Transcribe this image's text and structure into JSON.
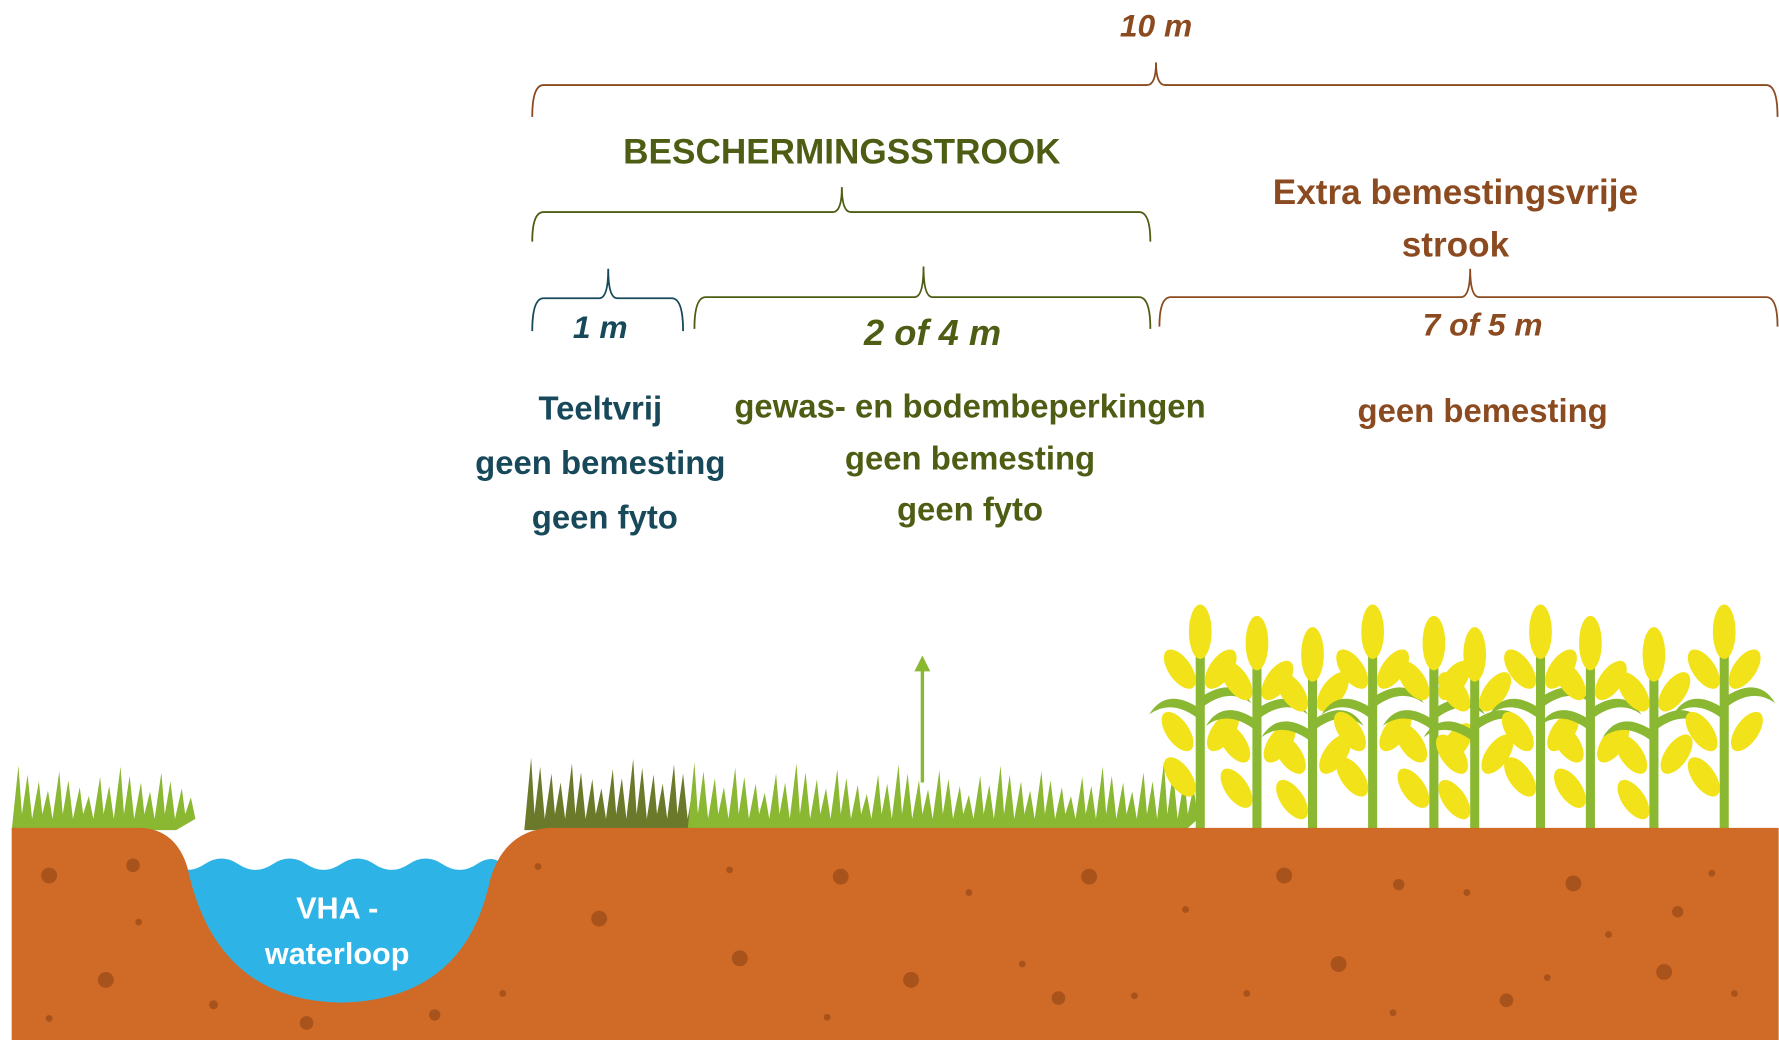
{
  "dimensions": {
    "total": "10 m",
    "buffer": "BESCHERMINGSSTROOK",
    "extra": [
      "Extra bemestingsvrije",
      "strook"
    ],
    "zone_1": "1 m",
    "zone_2": "2 of 4 m",
    "zone_3": "7 of 5 m"
  },
  "zones": [
    {
      "lines": [
        "Teeltvrij",
        "geen bemesting",
        "geen fyto"
      ]
    },
    {
      "lines": [
        "gewas- en bodembeperkingen",
        "geen bemesting",
        "geen fyto"
      ]
    },
    {
      "lines": [
        "geen bemesting"
      ]
    }
  ],
  "water": {
    "lines": [
      "VHA -",
      "waterloop"
    ]
  }
}
